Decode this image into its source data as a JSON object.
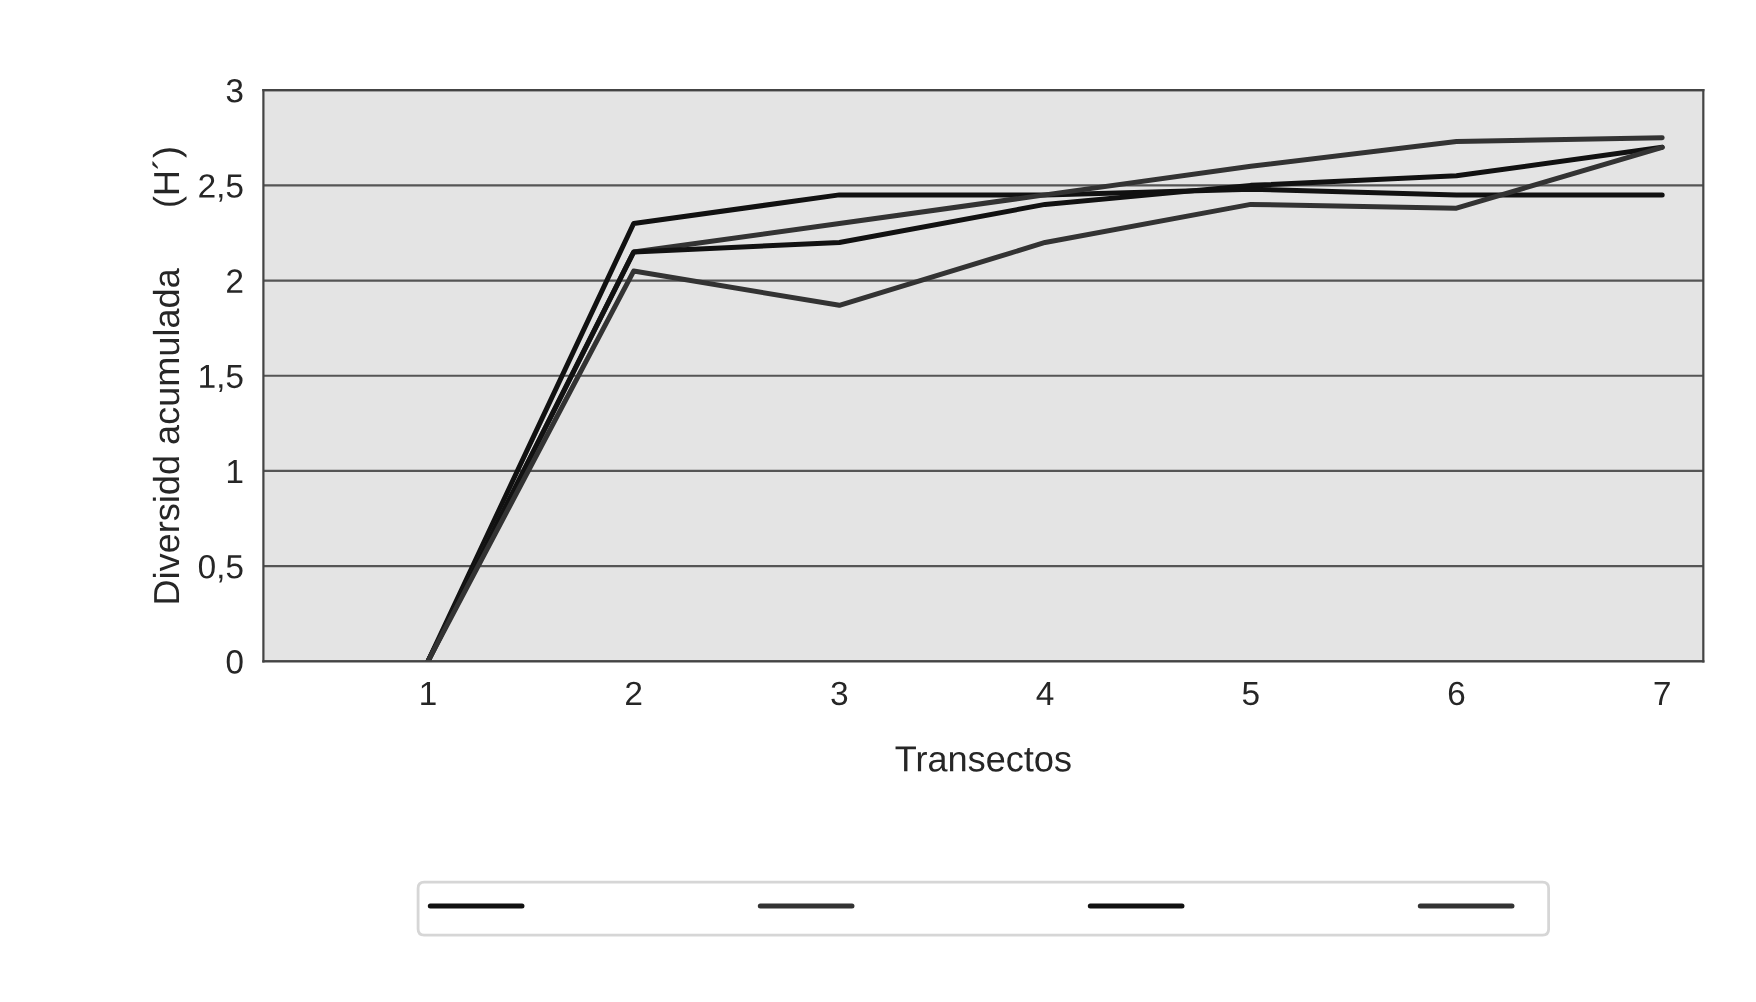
{
  "chart_data": {
    "type": "line",
    "xlabel": "Transectos",
    "ylabel": "Diversidd acumulada      (H´)",
    "categories": [
      "1",
      "2",
      "3",
      "4",
      "5",
      "6",
      "7"
    ],
    "series": [
      {
        "color": "#111111",
        "values": [
          0,
          2.3,
          2.45,
          2.45,
          2.48,
          2.45,
          2.45
        ]
      },
      {
        "color": "#333333",
        "values": [
          0,
          2.15,
          2.3,
          2.45,
          2.6,
          2.73,
          2.75
        ]
      },
      {
        "color": "#111111",
        "values": [
          0,
          2.15,
          2.2,
          2.4,
          2.5,
          2.55,
          2.7
        ]
      },
      {
        "color": "#333333",
        "values": [
          0,
          2.05,
          1.87,
          2.2,
          2.4,
          2.38,
          2.7
        ]
      }
    ],
    "ylim": [
      0,
      3
    ],
    "yticks": [
      0,
      {
        "value": 0.5,
        "label": "0,5"
      },
      1,
      {
        "value": 1.5,
        "label": "1,5"
      },
      2,
      {
        "value": 2.5,
        "label": "2,5"
      },
      3
    ],
    "grid": "y",
    "line_style": "solid",
    "marker": "none"
  }
}
